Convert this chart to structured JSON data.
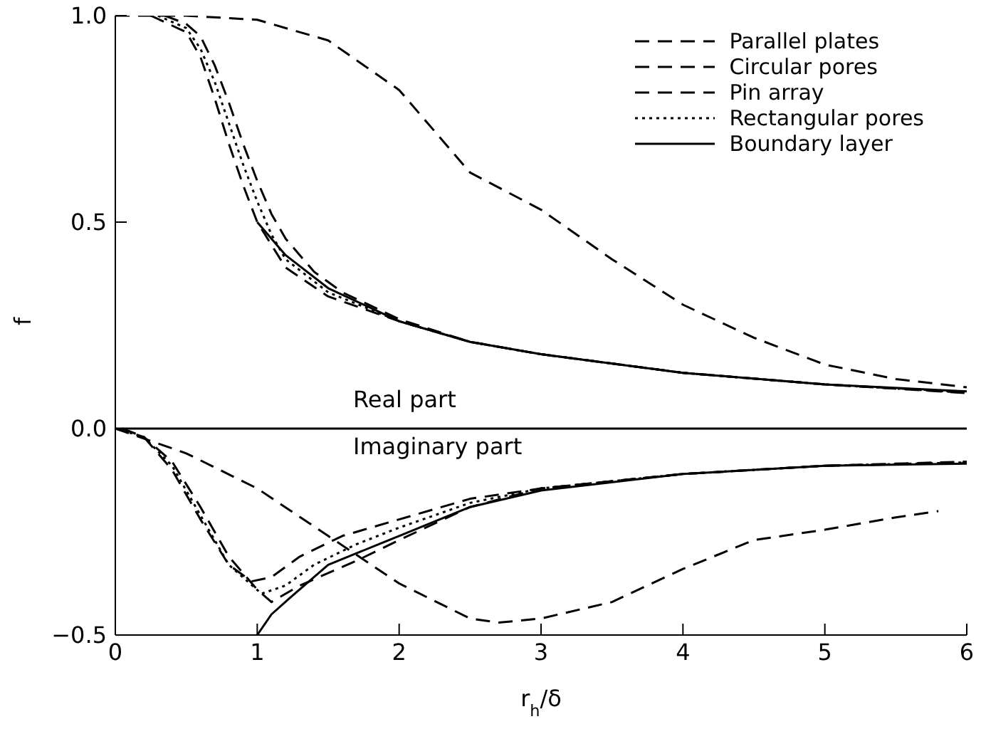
{
  "chart_data": {
    "type": "line",
    "xlabel": "r$_{h}$/δ",
    "ylabel": "f",
    "xlim": [
      0,
      6
    ],
    "xticks": [
      0,
      1,
      2,
      3,
      4,
      5,
      6
    ],
    "ylim": [
      -0.5,
      1
    ],
    "yticks": [
      {
        "value": -0.5,
        "label": "−0.5"
      },
      {
        "value": 0,
        "label": "0.0"
      },
      {
        "value": 0.5,
        "label": "0.5"
      },
      {
        "value": 1,
        "label": "1.0"
      }
    ],
    "legend": "top right",
    "marker": "none",
    "ref_lines": [
      {
        "axis": "y",
        "value": 0,
        "color": "#000000",
        "line_style": "solid"
      }
    ],
    "annotations": [
      "Real part",
      "Imaginary part"
    ],
    "series": [
      {
        "name": "Parallel plates",
        "color": "#000000",
        "line_style": "dashed",
        "x": [
          0.35,
          0.5,
          0.6,
          0.7,
          0.8,
          0.9,
          1.0,
          1.1,
          1.2,
          1.4,
          1.6,
          2,
          2.5,
          3,
          4,
          5,
          6
        ],
        "values": [
          1,
          0.98,
          0.95,
          0.88,
          0.79,
          0.69,
          0.6,
          0.52,
          0.46,
          0.38,
          0.33,
          0.265,
          0.21,
          0.18,
          0.135,
          0.107,
          0.088
        ]
      },
      {
        "name": "Circular pores",
        "color": "#000000",
        "line_style": "dashed",
        "x": [
          0.25,
          0.5,
          0.6,
          0.7,
          0.8,
          0.9,
          1.0,
          1.2,
          1.5,
          2,
          2.5,
          3,
          4,
          5,
          6
        ],
        "values": [
          1,
          0.96,
          0.9,
          0.8,
          0.69,
          0.59,
          0.5,
          0.39,
          0.32,
          0.26,
          0.21,
          0.18,
          0.135,
          0.107,
          0.086
        ]
      },
      {
        "name": "Pin array",
        "color": "#000000",
        "line_style": "dashed",
        "x": [
          0,
          0.5,
          1,
          1.5,
          2,
          2.5,
          3,
          3.5,
          4,
          4.5,
          5,
          5.5,
          6
        ],
        "values": [
          1,
          1,
          0.99,
          0.94,
          0.82,
          0.62,
          0.53,
          0.41,
          0.3,
          0.22,
          0.155,
          0.12,
          0.1
        ]
      },
      {
        "name": "Rectangular pores",
        "color": "#000000",
        "line_style": "dotted",
        "x": [
          0.3,
          0.5,
          0.6,
          0.7,
          0.8,
          0.9,
          1.0,
          1.1,
          1.2,
          1.5,
          2,
          2.5,
          3,
          4,
          5,
          6
        ],
        "values": [
          1,
          0.97,
          0.92,
          0.84,
          0.74,
          0.64,
          0.55,
          0.47,
          0.41,
          0.33,
          0.26,
          0.21,
          0.18,
          0.135,
          0.107,
          0.087
        ]
      },
      {
        "name": "Boundary layer",
        "color": "#000000",
        "line_style": "solid",
        "x": [
          1,
          1.2,
          1.5,
          2,
          2.5,
          3,
          4,
          5,
          6
        ],
        "values": [
          0.5,
          0.42,
          0.34,
          0.26,
          0.21,
          0.18,
          0.135,
          0.107,
          0.09
        ]
      },
      {
        "color": "#000000",
        "line_style": "dashed",
        "x": [
          0,
          0.2,
          0.4,
          0.6,
          0.8,
          1.0,
          1.1,
          1.3,
          1.7,
          2,
          2.5,
          3,
          4,
          5,
          6
        ],
        "values": [
          0,
          -0.02,
          -0.08,
          -0.19,
          -0.31,
          -0.39,
          -0.42,
          -0.38,
          -0.32,
          -0.27,
          -0.19,
          -0.145,
          -0.11,
          -0.09,
          -0.08
        ]
      },
      {
        "color": "#000000",
        "line_style": "dashed",
        "x": [
          0.05,
          0.2,
          0.4,
          0.6,
          0.8,
          0.96,
          1.1,
          1.3,
          1.6,
          2,
          2.5,
          3,
          4,
          5,
          6
        ],
        "values": [
          0,
          -0.02,
          -0.1,
          -0.22,
          -0.33,
          -0.37,
          -0.36,
          -0.31,
          -0.26,
          -0.22,
          -0.17,
          -0.145,
          -0.11,
          -0.09,
          -0.083
        ]
      },
      {
        "color": "#000000",
        "line_style": "dashed",
        "x": [
          0,
          0.5,
          1,
          1.5,
          2,
          2.5,
          2.7,
          3,
          3.5,
          4,
          4.5,
          5,
          5.5,
          5.8
        ],
        "values": [
          0,
          -0.06,
          -0.145,
          -0.26,
          -0.375,
          -0.46,
          -0.47,
          -0.46,
          -0.42,
          -0.34,
          -0.27,
          -0.245,
          -0.215,
          -0.2
        ]
      },
      {
        "color": "#000000",
        "line_style": "dotted",
        "x": [
          0.1,
          0.2,
          0.4,
          0.6,
          0.8,
          1.03,
          1.2,
          1.4,
          1.7,
          2,
          2.5,
          3,
          4,
          5,
          6
        ],
        "values": [
          -0.01,
          -0.02,
          -0.09,
          -0.21,
          -0.33,
          -0.4,
          -0.38,
          -0.33,
          -0.28,
          -0.24,
          -0.18,
          -0.145,
          -0.11,
          -0.09,
          -0.082
        ]
      },
      {
        "color": "#000000",
        "line_style": "solid",
        "x": [
          1,
          1.1,
          1.23,
          1.5,
          2,
          2.5,
          3,
          4,
          5,
          6
        ],
        "values": [
          -0.5,
          -0.45,
          -0.41,
          -0.33,
          -0.26,
          -0.19,
          -0.15,
          -0.11,
          -0.09,
          -0.085
        ]
      }
    ]
  }
}
